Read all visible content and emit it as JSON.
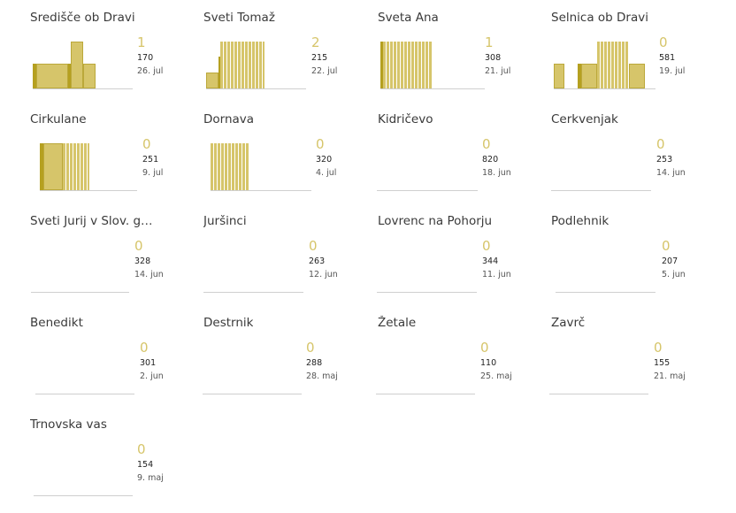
{
  "colors": {
    "bar": "#d6c56a",
    "bar_edge": "#bba83a",
    "bar_dark": "#b5a020",
    "accent_text": "#d6c56a"
  },
  "chart_data": [
    {
      "type": "bar",
      "title": "Središče ob Dravi",
      "big": "1",
      "value": "170",
      "date": "26. jul",
      "bars": [
        {
          "x": 0,
          "w": 4,
          "h": 0.53,
          "d": true
        },
        {
          "x": 4,
          "w": 36,
          "h": 0.53
        },
        {
          "x": 40,
          "w": 3,
          "h": 0.53,
          "d": true
        },
        {
          "x": 43,
          "w": 14,
          "h": 1.0
        },
        {
          "x": 57,
          "w": 14,
          "h": 0.53
        }
      ]
    },
    {
      "type": "bar",
      "title": "Sveti Tomaž",
      "big": "2",
      "value": "215",
      "date": "22. jul",
      "bars": [
        {
          "x": 0,
          "w": 14,
          "h": 0.34
        },
        {
          "x": 14,
          "w": 2,
          "h": 0.68,
          "d": true
        },
        {
          "x": 16,
          "w": 50,
          "h": 1.0,
          "stripe": true
        }
      ]
    },
    {
      "type": "bar",
      "title": "Sveta Ana",
      "big": "1",
      "value": "308",
      "date": "21. jul",
      "bars": [
        {
          "x": 0,
          "w": 3,
          "h": 1.0,
          "d": true
        },
        {
          "x": 3,
          "w": 55,
          "h": 1.0,
          "stripe": true
        }
      ]
    },
    {
      "type": "bar",
      "title": "Selnica ob Dravi",
      "big": "0",
      "value": "581",
      "date": "19. jul",
      "bars": [
        {
          "x": 0,
          "w": 12,
          "h": 0.53
        },
        {
          "x": 27,
          "w": 4,
          "h": 0.53,
          "d": true
        },
        {
          "x": 31,
          "w": 18,
          "h": 0.53
        },
        {
          "x": 49,
          "w": 36,
          "h": 1.0,
          "stripe": true
        },
        {
          "x": 85,
          "w": 18,
          "h": 0.53
        }
      ]
    },
    {
      "type": "bar",
      "title": "Cirkulane",
      "big": "0",
      "value": "251",
      "date": "9. jul",
      "bars": [
        {
          "x": 0,
          "w": 4,
          "h": 1.0,
          "d": true
        },
        {
          "x": 4,
          "w": 22,
          "h": 1.0
        },
        {
          "x": 26,
          "w": 30,
          "h": 1.0,
          "stripe": true
        }
      ]
    },
    {
      "type": "bar",
      "title": "Dornava",
      "big": "0",
      "value": "320",
      "date": "4. jul",
      "bars": [
        {
          "x": 0,
          "w": 44,
          "h": 1.0,
          "stripe": true
        }
      ]
    },
    {
      "type": "bar",
      "title": "Kidričevo",
      "big": "0",
      "value": "820",
      "date": "18. jun",
      "bars": []
    },
    {
      "type": "bar",
      "title": "Cerkvenjak",
      "big": "0",
      "value": "253",
      "date": "14. jun",
      "bars": []
    },
    {
      "type": "bar",
      "title": "Sveti Jurij v Slov. go...",
      "big": "0",
      "value": "328",
      "date": "14. jun",
      "bars": []
    },
    {
      "type": "bar",
      "title": "Juršinci",
      "big": "0",
      "value": "263",
      "date": "12. jun",
      "bars": []
    },
    {
      "type": "bar",
      "title": "Lovrenc na Pohorju",
      "big": "0",
      "value": "344",
      "date": "11. jun",
      "bars": []
    },
    {
      "type": "bar",
      "title": "Podlehnik",
      "big": "0",
      "value": "207",
      "date": "5. jun",
      "bars": []
    },
    {
      "type": "bar",
      "title": "Benedikt",
      "big": "0",
      "value": "301",
      "date": "2. jun",
      "bars": []
    },
    {
      "type": "bar",
      "title": "Destrnik",
      "big": "0",
      "value": "288",
      "date": "28. maj",
      "bars": []
    },
    {
      "type": "bar",
      "title": "Žetale",
      "big": "0",
      "value": "110",
      "date": "25. maj",
      "bars": []
    },
    {
      "type": "bar",
      "title": "Zavrč",
      "big": "0",
      "value": "155",
      "date": "21. maj",
      "bars": []
    },
    {
      "type": "bar",
      "title": "Trnovska vas",
      "big": "0",
      "value": "154",
      "date": "9. maj",
      "bars": []
    }
  ]
}
